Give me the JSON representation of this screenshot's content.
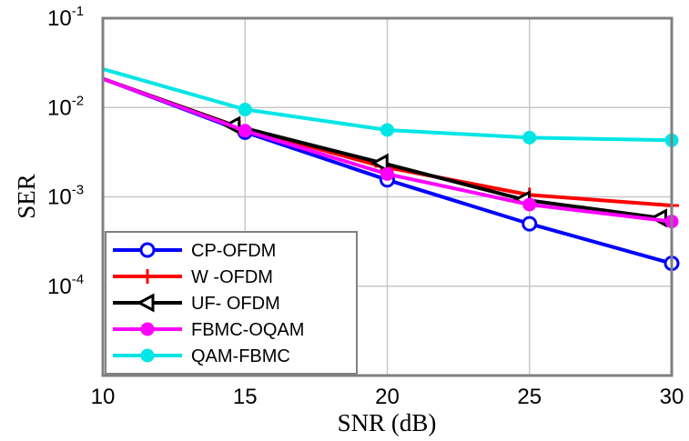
{
  "chart_data": {
    "type": "line",
    "title": "",
    "xlabel": "SNR (dB)",
    "ylabel": "SER",
    "xlim": [
      10,
      30
    ],
    "ylim": [
      1e-05,
      0.1
    ],
    "yscale": "log",
    "grid": true,
    "legend_position": "bottom-left",
    "x_ticks": [
      "10",
      "15",
      "20",
      "25",
      "30"
    ],
    "y_ticks": [
      {
        "value": 0.1,
        "base": "10",
        "exp": "-1"
      },
      {
        "value": 0.01,
        "base": "10",
        "exp": "-2"
      },
      {
        "value": 0.001,
        "base": "10",
        "exp": "-3"
      },
      {
        "value": 0.0001,
        "base": "10",
        "exp": "-4"
      }
    ],
    "series": [
      {
        "name": "CP-OFDM",
        "color": "#0000ff",
        "marker": "circle",
        "x": [
          10,
          15,
          20,
          25,
          30
        ],
        "y": [
          0.021,
          0.0053,
          0.00155,
          0.0005,
          0.00018
        ]
      },
      {
        "name": "W -OFDM",
        "color": "#ff0000",
        "marker": "plus",
        "x": [
          10,
          14.8,
          19.8,
          25,
          30
        ],
        "y": [
          0.021,
          0.006,
          0.0022,
          0.00105,
          0.0008
        ]
      },
      {
        "name": "UF- OFDM",
        "color": "#000000",
        "marker": "triangle-left",
        "x": [
          10,
          14.6,
          19.8,
          24.8,
          29.6
        ],
        "y": [
          0.021,
          0.0063,
          0.0024,
          0.00093,
          0.00058
        ]
      },
      {
        "name": "FBMC-OQAM",
        "color": "#ff00ff",
        "marker": "dot",
        "x": [
          10,
          15,
          20,
          25,
          30
        ],
        "y": [
          0.021,
          0.0055,
          0.0018,
          0.00082,
          0.00053
        ]
      },
      {
        "name": "QAM-FBMC",
        "color": "#00e5e5",
        "marker": "dot",
        "x": [
          10,
          15,
          20,
          25,
          30
        ],
        "y": [
          0.027,
          0.0095,
          0.0056,
          0.0046,
          0.0043
        ]
      }
    ]
  }
}
